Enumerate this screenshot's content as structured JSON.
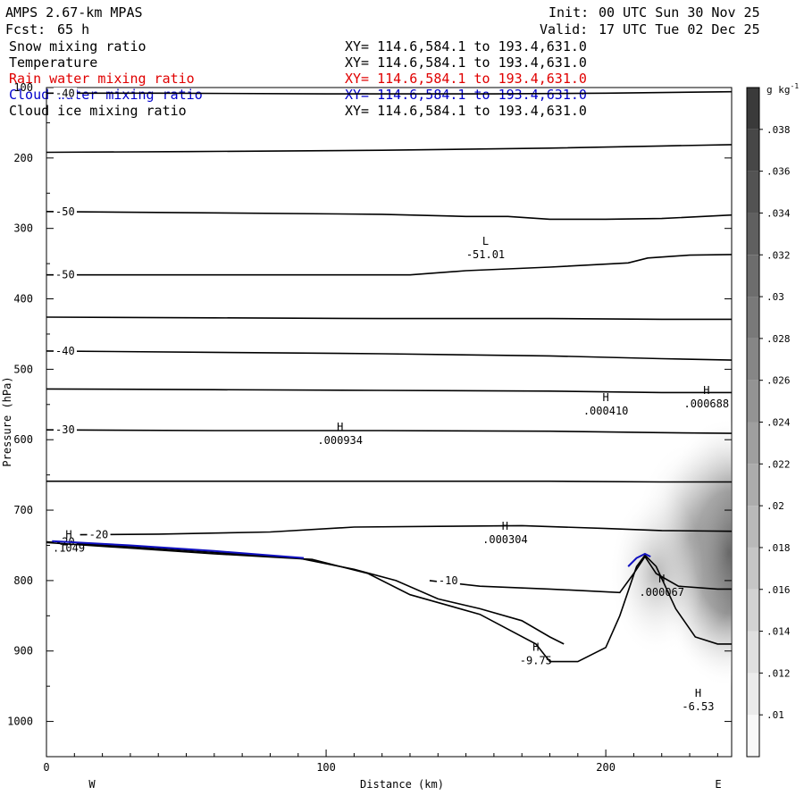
{
  "header": {
    "model": "AMPS 2.67-km MPAS",
    "init_label": "Init:",
    "init_time": "00 UTC Sun 30 Nov 25",
    "fcst_label": "Fcst:",
    "fcst_value": "65 h",
    "valid_label": "Valid:",
    "valid_time": "17 UTC Tue 02 Dec 25",
    "fields": [
      {
        "name": "Snow mixing ratio",
        "xy": "XY= 114.6,584.1 to 193.4,631.0",
        "color": "#000000"
      },
      {
        "name": "Temperature",
        "xy": "XY= 114.6,584.1 to 193.4,631.0",
        "color": "#000000"
      },
      {
        "name": "Rain water mixing ratio",
        "xy": "XY= 114.6,584.1 to 193.4,631.0",
        "color": "#e00000"
      },
      {
        "name": "Cloud water mixing ratio",
        "xy": "XY= 114.6,584.1 to 193.4,631.0",
        "color": "#0000cc"
      },
      {
        "name": "Cloud ice mixing ratio",
        "xy": "XY= 114.6,584.1 to 193.4,631.0",
        "color": "#000000"
      }
    ]
  },
  "chart_data": {
    "type": "cross-section",
    "xlabel": "Distance (km)",
    "ylabel": "Pressure (hPa)",
    "xlim": [
      0,
      245
    ],
    "ylim": [
      1050,
      100
    ],
    "x_ticks": [
      0,
      100,
      200
    ],
    "y_ticks": [
      100,
      200,
      300,
      400,
      500,
      600,
      700,
      800,
      900,
      1000
    ],
    "x_end_labels": {
      "left": "W",
      "right": "E"
    },
    "colorbar": {
      "units": "g kg",
      "units_exp": "-1",
      "ticks": [
        ".01",
        ".012",
        ".014",
        ".016",
        ".018",
        ".02",
        ".022",
        ".024",
        ".026",
        ".028",
        ".03",
        ".032",
        ".034",
        ".036",
        ".038"
      ]
    },
    "contours": [
      {
        "label": "-40",
        "points": [
          [
            0,
            108
          ],
          [
            40,
            108
          ],
          [
            100,
            109
          ],
          [
            160,
            109
          ],
          [
            200,
            108
          ],
          [
            245,
            106
          ]
        ]
      },
      {
        "points": [
          [
            0,
            192
          ],
          [
            50,
            191
          ],
          [
            120,
            189
          ],
          [
            180,
            186
          ],
          [
            220,
            183
          ],
          [
            245,
            181
          ]
        ]
      },
      {
        "label": "-50",
        "points": [
          [
            0,
            276
          ],
          [
            60,
            278
          ],
          [
            120,
            280
          ],
          [
            150,
            283
          ],
          [
            165,
            283
          ],
          [
            180,
            287
          ],
          [
            200,
            287
          ],
          [
            220,
            286
          ],
          [
            245,
            281
          ]
        ]
      },
      {
        "label": "-50",
        "points": [
          [
            0,
            366
          ],
          [
            60,
            366
          ],
          [
            100,
            366
          ],
          [
            130,
            366
          ],
          [
            150,
            360
          ],
          [
            180,
            355
          ],
          [
            208,
            349
          ],
          [
            215,
            342
          ],
          [
            230,
            338
          ],
          [
            245,
            337
          ]
        ]
      },
      {
        "points": [
          [
            0,
            426
          ],
          [
            60,
            427
          ],
          [
            120,
            428
          ],
          [
            180,
            428
          ],
          [
            220,
            429
          ],
          [
            245,
            429
          ]
        ]
      },
      {
        "label": "-40",
        "points": [
          [
            0,
            474
          ],
          [
            60,
            476
          ],
          [
            120,
            478
          ],
          [
            180,
            481
          ],
          [
            220,
            485
          ],
          [
            245,
            487
          ]
        ]
      },
      {
        "points": [
          [
            0,
            528
          ],
          [
            60,
            529
          ],
          [
            120,
            530
          ],
          [
            180,
            531
          ],
          [
            220,
            533
          ],
          [
            245,
            533
          ]
        ]
      },
      {
        "label": "-30",
        "points": [
          [
            0,
            586
          ],
          [
            60,
            587
          ],
          [
            120,
            587
          ],
          [
            180,
            588
          ],
          [
            220,
            590
          ],
          [
            245,
            591
          ]
        ]
      },
      {
        "points": [
          [
            0,
            659
          ],
          [
            60,
            659
          ],
          [
            120,
            659
          ],
          [
            180,
            659
          ],
          [
            220,
            660
          ],
          [
            245,
            660
          ]
        ]
      },
      {
        "label": "-20",
        "points": [
          [
            12,
            735
          ],
          [
            40,
            734
          ],
          [
            80,
            731
          ],
          [
            110,
            724
          ],
          [
            140,
            723
          ],
          [
            170,
            722
          ],
          [
            200,
            726
          ],
          [
            220,
            729
          ],
          [
            245,
            730
          ]
        ]
      },
      {
        "label": "-20",
        "points": [
          [
            0,
            745
          ],
          [
            30,
            752
          ],
          [
            60,
            760
          ],
          [
            90,
            768
          ],
          [
            110,
            784
          ],
          [
            125,
            800
          ],
          [
            140,
            826
          ],
          [
            155,
            840
          ],
          [
            170,
            857
          ],
          [
            180,
            880
          ],
          [
            185,
            890
          ]
        ]
      },
      {
        "label": "-10",
        "points": [
          [
            137,
            800
          ],
          [
            155,
            808
          ],
          [
            180,
            812
          ],
          [
            195,
            815
          ],
          [
            205,
            817
          ],
          [
            210,
            790
          ],
          [
            214,
            766
          ],
          [
            218,
            790
          ],
          [
            226,
            808
          ],
          [
            240,
            812
          ],
          [
            245,
            812
          ]
        ]
      },
      {
        "points": [
          [
            0,
            746
          ],
          [
            30,
            754
          ],
          [
            60,
            762
          ],
          [
            95,
            770
          ],
          [
            115,
            790
          ],
          [
            130,
            820
          ],
          [
            155,
            848
          ],
          [
            175,
            890
          ],
          [
            180,
            915
          ],
          [
            190,
            915
          ],
          [
            200,
            895
          ],
          [
            205,
            850
          ],
          [
            211,
            780
          ],
          [
            214,
            764
          ],
          [
            218,
            780
          ],
          [
            225,
            840
          ],
          [
            232,
            880
          ],
          [
            240,
            890
          ],
          [
            245,
            890
          ]
        ]
      }
    ],
    "extrema": [
      {
        "type": "H",
        "value": ".1049",
        "x": 8,
        "p": 745,
        "color": "#0000cc"
      },
      {
        "type": "L",
        "value": "-51.01",
        "x": 157,
        "p": 328,
        "color": "#000000"
      },
      {
        "type": "H",
        "value": ".000410",
        "x": 200,
        "p": 550,
        "color": "#000000"
      },
      {
        "type": "H",
        "value": ".000688",
        "x": 236,
        "p": 540,
        "color": "#000000"
      },
      {
        "type": "H",
        "value": ".000934",
        "x": 105,
        "p": 592,
        "color": "#000000"
      },
      {
        "type": "H",
        "value": ".000304",
        "x": 164,
        "p": 733,
        "color": "#000000"
      },
      {
        "type": "H",
        "value": ".000067",
        "x": 220,
        "p": 808,
        "color": "#000000"
      },
      {
        "type": "H",
        "value": "-9.75",
        "x": 175,
        "p": 905,
        "color": "#000000"
      },
      {
        "type": "H",
        "value": "-6.53",
        "x": 233,
        "p": 970,
        "color": "#000000"
      }
    ],
    "shading": [
      {
        "x": 244,
        "p": 760,
        "value": 0.036
      },
      {
        "x": 230,
        "p": 740,
        "value": 0.022
      },
      {
        "x": 218,
        "p": 790,
        "value": 0.016
      }
    ]
  }
}
